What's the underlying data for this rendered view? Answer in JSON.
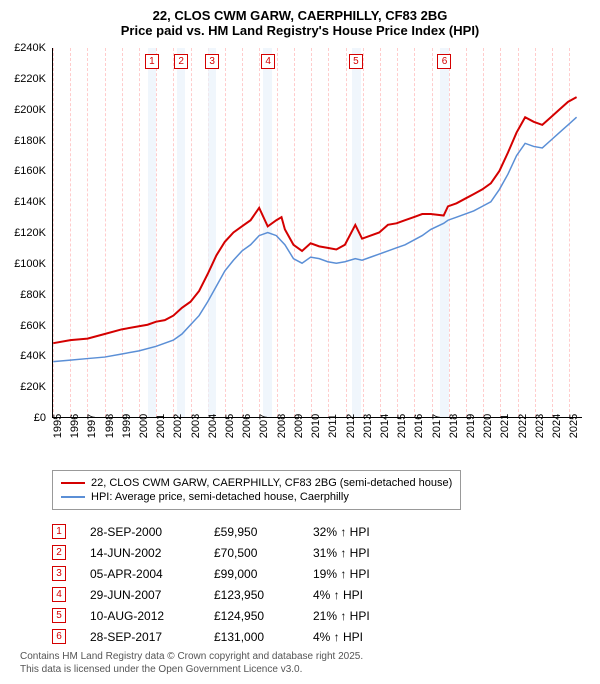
{
  "title_line1": "22, CLOS CWM GARW, CAERPHILLY, CF83 2BG",
  "title_line2": "Price paid vs. HM Land Registry's House Price Index (HPI)",
  "chart": {
    "type": "line",
    "background_color": "#ffffff",
    "grid_color": "#ffcccc",
    "shade_color": "#eaf2fb",
    "ylim": [
      0,
      240000
    ],
    "ytick_step": 20000,
    "ytick_labels": [
      "£0",
      "£20K",
      "£40K",
      "£60K",
      "£80K",
      "£100K",
      "£120K",
      "£140K",
      "£160K",
      "£180K",
      "£200K",
      "£220K",
      "£240K"
    ],
    "xlim": [
      1995,
      2025.8
    ],
    "xtick_labels": [
      "1995",
      "1996",
      "1997",
      "1998",
      "1999",
      "2000",
      "2001",
      "2002",
      "2003",
      "2004",
      "2005",
      "2006",
      "2007",
      "2008",
      "2009",
      "2010",
      "2011",
      "2012",
      "2013",
      "2014",
      "2015",
      "2016",
      "2017",
      "2018",
      "2019",
      "2020",
      "2021",
      "2022",
      "2023",
      "2024",
      "2025"
    ],
    "label_fontsize": 11,
    "series": [
      {
        "name": "price_paid",
        "color": "#d40000",
        "line_width": 2,
        "points": [
          [
            1995,
            48000
          ],
          [
            1996,
            50000
          ],
          [
            1997,
            51000
          ],
          [
            1998,
            54000
          ],
          [
            1999,
            57000
          ],
          [
            2000,
            59000
          ],
          [
            2000.5,
            60000
          ],
          [
            2001,
            62000
          ],
          [
            2001.5,
            63000
          ],
          [
            2002,
            66000
          ],
          [
            2002.5,
            71000
          ],
          [
            2003,
            75000
          ],
          [
            2003.5,
            82000
          ],
          [
            2004,
            93000
          ],
          [
            2004.25,
            99000
          ],
          [
            2004.5,
            105000
          ],
          [
            2005,
            114000
          ],
          [
            2005.5,
            120000
          ],
          [
            2006,
            124000
          ],
          [
            2006.5,
            128000
          ],
          [
            2007,
            136000
          ],
          [
            2007.5,
            123950
          ],
          [
            2008,
            128000
          ],
          [
            2008.3,
            130000
          ],
          [
            2008.5,
            122000
          ],
          [
            2009,
            112000
          ],
          [
            2009.5,
            108000
          ],
          [
            2010,
            113000
          ],
          [
            2010.5,
            111000
          ],
          [
            2011,
            110000
          ],
          [
            2011.5,
            109000
          ],
          [
            2012,
            112000
          ],
          [
            2012.6,
            124950
          ],
          [
            2013,
            116000
          ],
          [
            2013.5,
            118000
          ],
          [
            2014,
            120000
          ],
          [
            2014.5,
            125000
          ],
          [
            2015,
            126000
          ],
          [
            2015.5,
            128000
          ],
          [
            2016,
            130000
          ],
          [
            2016.5,
            132000
          ],
          [
            2017,
            132000
          ],
          [
            2017.75,
            131000
          ],
          [
            2018,
            137000
          ],
          [
            2018.5,
            139000
          ],
          [
            2019,
            142000
          ],
          [
            2019.5,
            145000
          ],
          [
            2020,
            148000
          ],
          [
            2020.5,
            152000
          ],
          [
            2021,
            160000
          ],
          [
            2021.5,
            172000
          ],
          [
            2022,
            185000
          ],
          [
            2022.5,
            195000
          ],
          [
            2023,
            192000
          ],
          [
            2023.5,
            190000
          ],
          [
            2024,
            195000
          ],
          [
            2024.5,
            200000
          ],
          [
            2025,
            205000
          ],
          [
            2025.5,
            208000
          ]
        ]
      },
      {
        "name": "hpi",
        "color": "#5b8fd6",
        "line_width": 1.5,
        "points": [
          [
            1995,
            36000
          ],
          [
            1996,
            37000
          ],
          [
            1997,
            38000
          ],
          [
            1998,
            39000
          ],
          [
            1999,
            41000
          ],
          [
            2000,
            43000
          ],
          [
            2001,
            46000
          ],
          [
            2002,
            50000
          ],
          [
            2002.5,
            54000
          ],
          [
            2003,
            60000
          ],
          [
            2003.5,
            66000
          ],
          [
            2004,
            75000
          ],
          [
            2004.5,
            85000
          ],
          [
            2005,
            95000
          ],
          [
            2005.5,
            102000
          ],
          [
            2006,
            108000
          ],
          [
            2006.5,
            112000
          ],
          [
            2007,
            118000
          ],
          [
            2007.5,
            120000
          ],
          [
            2008,
            118000
          ],
          [
            2008.5,
            112000
          ],
          [
            2009,
            103000
          ],
          [
            2009.5,
            100000
          ],
          [
            2010,
            104000
          ],
          [
            2010.5,
            103000
          ],
          [
            2011,
            101000
          ],
          [
            2011.5,
            100000
          ],
          [
            2012,
            101000
          ],
          [
            2012.6,
            103000
          ],
          [
            2013,
            102000
          ],
          [
            2013.5,
            104000
          ],
          [
            2014,
            106000
          ],
          [
            2014.5,
            108000
          ],
          [
            2015,
            110000
          ],
          [
            2015.5,
            112000
          ],
          [
            2016,
            115000
          ],
          [
            2016.5,
            118000
          ],
          [
            2017,
            122000
          ],
          [
            2017.75,
            126000
          ],
          [
            2018,
            128000
          ],
          [
            2018.5,
            130000
          ],
          [
            2019,
            132000
          ],
          [
            2019.5,
            134000
          ],
          [
            2020,
            137000
          ],
          [
            2020.5,
            140000
          ],
          [
            2021,
            148000
          ],
          [
            2021.5,
            158000
          ],
          [
            2022,
            170000
          ],
          [
            2022.5,
            178000
          ],
          [
            2023,
            176000
          ],
          [
            2023.5,
            175000
          ],
          [
            2024,
            180000
          ],
          [
            2024.5,
            185000
          ],
          [
            2025,
            190000
          ],
          [
            2025.5,
            195000
          ]
        ]
      }
    ],
    "shaded_ranges": [
      [
        2000.5,
        2001.0
      ],
      [
        2002.2,
        2002.7
      ],
      [
        2004.0,
        2004.5
      ],
      [
        2007.2,
        2007.7
      ],
      [
        2012.4,
        2012.9
      ],
      [
        2017.5,
        2018.0
      ]
    ],
    "markers": [
      {
        "n": "1",
        "x": 2000.75,
        "color": "#d40000"
      },
      {
        "n": "2",
        "x": 2002.45,
        "color": "#d40000"
      },
      {
        "n": "3",
        "x": 2004.25,
        "color": "#d40000"
      },
      {
        "n": "4",
        "x": 2007.5,
        "color": "#d40000"
      },
      {
        "n": "5",
        "x": 2012.6,
        "color": "#d40000"
      },
      {
        "n": "6",
        "x": 2017.75,
        "color": "#d40000"
      }
    ]
  },
  "legend": {
    "items": [
      {
        "color": "#d40000",
        "label": "22, CLOS CWM GARW, CAERPHILLY, CF83 2BG (semi-detached house)"
      },
      {
        "color": "#5b8fd6",
        "label": "HPI: Average price, semi-detached house, Caerphilly"
      }
    ]
  },
  "sales": [
    {
      "n": "1",
      "color": "#d40000",
      "date": "28-SEP-2000",
      "price": "£59,950",
      "diff": "32% ↑ HPI"
    },
    {
      "n": "2",
      "color": "#d40000",
      "date": "14-JUN-2002",
      "price": "£70,500",
      "diff": "31% ↑ HPI"
    },
    {
      "n": "3",
      "color": "#d40000",
      "date": "05-APR-2004",
      "price": "£99,000",
      "diff": "19% ↑ HPI"
    },
    {
      "n": "4",
      "color": "#d40000",
      "date": "29-JUN-2007",
      "price": "£123,950",
      "diff": "4% ↑ HPI"
    },
    {
      "n": "5",
      "color": "#d40000",
      "date": "10-AUG-2012",
      "price": "£124,950",
      "diff": "21% ↑ HPI"
    },
    {
      "n": "6",
      "color": "#d40000",
      "date": "28-SEP-2017",
      "price": "£131,000",
      "diff": "4% ↑ HPI"
    }
  ],
  "footer_line1": "Contains HM Land Registry data © Crown copyright and database right 2025.",
  "footer_line2": "This data is licensed under the Open Government Licence v3.0."
}
